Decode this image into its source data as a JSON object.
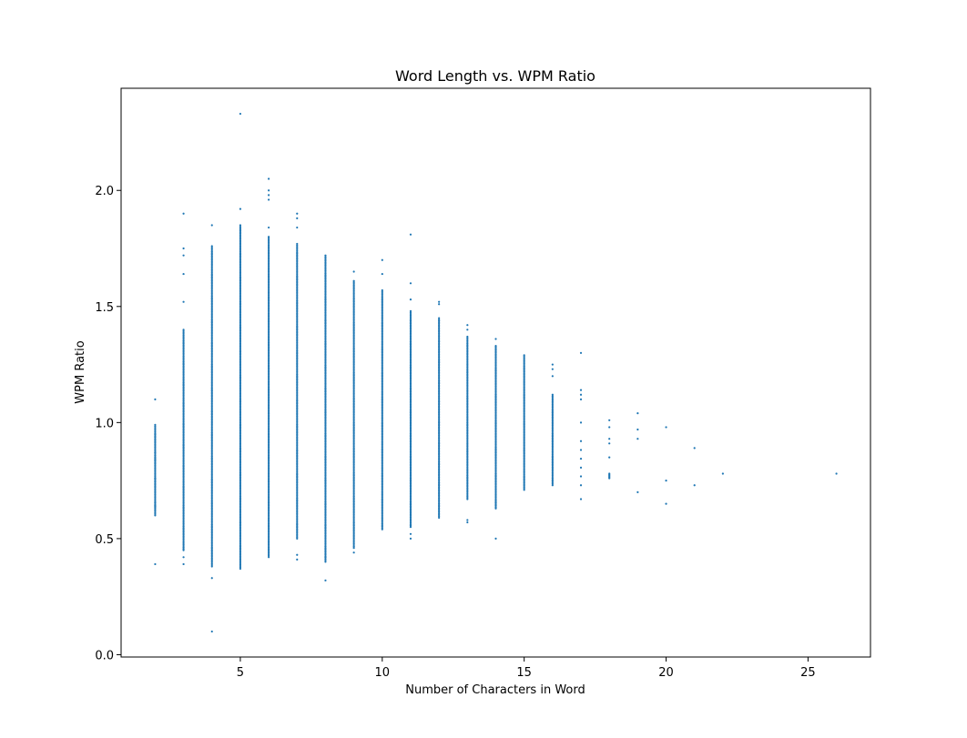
{
  "chart_data": {
    "type": "scatter",
    "title": "Word Length vs. WPM Ratio",
    "xlabel": "Number of Characters in Word",
    "ylabel": "WPM Ratio",
    "xlim": [
      0.8,
      27.2
    ],
    "ylim": [
      -0.01,
      2.44
    ],
    "xticks": [
      5,
      10,
      15,
      20,
      25
    ],
    "yticks": [
      0.0,
      0.5,
      1.0,
      1.5,
      2.0
    ],
    "ytick_labels": [
      "0.0",
      "0.5",
      "1.0",
      "1.5",
      "2.0"
    ],
    "grid": false,
    "legend": "none",
    "marker_color": "#1f77b4",
    "columns": [
      {
        "x": 2,
        "min": 0.6,
        "max": 0.99,
        "outliers": [
          0.39,
          1.1,
          0.64,
          0.76,
          0.84,
          0.87
        ]
      },
      {
        "x": 3,
        "min": 0.45,
        "max": 1.4,
        "outliers": [
          0.39,
          0.42,
          1.52,
          1.64,
          1.72,
          1.75,
          1.9
        ]
      },
      {
        "x": 4,
        "min": 0.38,
        "max": 1.76,
        "outliers": [
          0.1,
          0.33,
          1.85
        ]
      },
      {
        "x": 5,
        "min": 0.37,
        "max": 1.85,
        "outliers": [
          1.92,
          2.33
        ]
      },
      {
        "x": 6,
        "min": 0.42,
        "max": 1.8,
        "outliers": [
          1.84,
          1.96,
          1.98,
          2.0,
          2.05
        ]
      },
      {
        "x": 7,
        "min": 0.5,
        "max": 1.77,
        "outliers": [
          0.41,
          0.43,
          1.84,
          1.88,
          1.9
        ]
      },
      {
        "x": 8,
        "min": 0.4,
        "max": 1.72,
        "outliers": [
          0.32,
          0.42
        ]
      },
      {
        "x": 9,
        "min": 0.46,
        "max": 1.61,
        "outliers": [
          0.44,
          1.65
        ]
      },
      {
        "x": 10,
        "min": 0.54,
        "max": 1.57,
        "outliers": [
          1.64,
          1.7
        ]
      },
      {
        "x": 11,
        "min": 0.55,
        "max": 1.48,
        "outliers": [
          0.5,
          0.52,
          1.53,
          1.6,
          1.81
        ]
      },
      {
        "x": 12,
        "min": 0.59,
        "max": 1.45,
        "outliers": [
          1.51,
          1.52
        ]
      },
      {
        "x": 13,
        "min": 0.67,
        "max": 1.37,
        "outliers": [
          0.57,
          0.58,
          1.4,
          1.42
        ]
      },
      {
        "x": 14,
        "min": 0.63,
        "max": 1.33,
        "outliers": [
          0.5,
          1.36
        ]
      },
      {
        "x": 15,
        "min": 0.71,
        "max": 1.29,
        "outliers": []
      },
      {
        "x": 16,
        "min": 0.73,
        "max": 1.12,
        "outliers": [
          1.2,
          1.23,
          1.25
        ]
      },
      {
        "x": 17,
        "min": 0.73,
        "max": 0.92,
        "outliers": [
          0.67,
          1.0,
          1.1,
          1.12,
          1.14,
          1.3
        ]
      },
      {
        "x": 18,
        "min": 0.76,
        "max": 0.78,
        "outliers": [
          0.85,
          0.91,
          0.93,
          0.98,
          1.01
        ]
      },
      {
        "x": 19,
        "min": 0.7,
        "max": 0.7,
        "outliers": [
          0.93,
          0.97,
          1.04
        ]
      },
      {
        "x": 20,
        "min": 0.65,
        "max": 0.65,
        "outliers": [
          0.75,
          0.98
        ]
      },
      {
        "x": 21,
        "min": 0.73,
        "max": 0.73,
        "outliers": [
          0.89
        ]
      },
      {
        "x": 22,
        "min": 0.78,
        "max": 0.78,
        "outliers": []
      },
      {
        "x": 26,
        "min": 0.78,
        "max": 0.78,
        "outliers": []
      }
    ]
  }
}
